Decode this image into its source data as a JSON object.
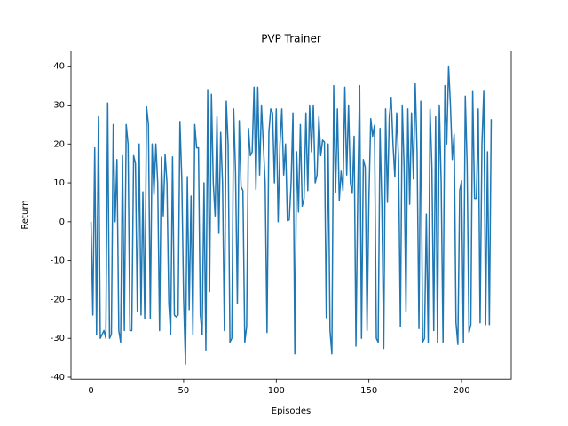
{
  "chart_data": {
    "type": "line",
    "title": "PVP Trainer",
    "xlabel": "Episodes",
    "ylabel": "Return",
    "x": [
      0,
      1,
      2,
      3,
      4,
      5,
      6,
      7,
      8,
      9,
      10,
      11,
      12,
      13,
      14,
      15,
      16,
      17,
      18,
      19,
      20,
      21,
      22,
      23,
      24,
      25,
      26,
      27,
      28,
      29,
      30,
      31,
      32,
      33,
      34,
      35,
      36,
      37,
      38,
      39,
      40,
      41,
      42,
      43,
      44,
      45,
      46,
      47,
      48,
      49,
      50,
      51,
      52,
      53,
      54,
      55,
      56,
      57,
      58,
      59,
      60,
      61,
      62,
      63,
      64,
      65,
      66,
      67,
      68,
      69,
      70,
      71,
      72,
      73,
      74,
      75,
      76,
      77,
      78,
      79,
      80,
      81,
      82,
      83,
      84,
      85,
      86,
      87,
      88,
      89,
      90,
      91,
      92,
      93,
      94,
      95,
      96,
      97,
      98,
      99,
      100,
      101,
      102,
      103,
      104,
      105,
      106,
      107,
      108,
      109,
      110,
      111,
      112,
      113,
      114,
      115,
      116,
      117,
      118,
      119,
      120,
      121,
      122,
      123,
      124,
      125,
      126,
      127,
      128,
      129,
      130,
      131,
      132,
      133,
      134,
      135,
      136,
      137,
      138,
      139,
      140,
      141,
      142,
      143,
      144,
      145,
      146,
      147,
      148,
      149,
      150,
      151,
      152,
      153,
      154,
      155,
      156,
      157,
      158,
      159,
      160,
      161,
      162,
      163,
      164,
      165,
      166,
      167,
      168,
      169,
      170,
      171,
      172,
      173,
      174,
      175,
      176,
      177,
      178,
      179,
      180,
      181,
      182,
      183,
      184,
      185,
      186,
      187,
      188,
      189,
      190,
      191,
      192,
      193,
      194,
      195,
      196,
      197,
      198,
      199,
      200,
      201,
      202,
      203,
      204,
      205,
      206,
      207,
      208,
      209,
      210,
      211,
      212,
      213,
      214,
      215,
      216
    ],
    "values": [
      0,
      -24,
      19,
      -29,
      27,
      -30,
      -29,
      -28,
      -30,
      30.5,
      -30,
      -29,
      25,
      0,
      16,
      -28,
      -31,
      17,
      -28,
      25,
      20,
      -28,
      -28,
      17,
      15,
      -23,
      20,
      -24,
      7.7,
      -25,
      29.5,
      25,
      -25,
      20,
      7,
      20,
      10,
      -28,
      16.6,
      1.5,
      17.3,
      10,
      -21,
      -29,
      16.7,
      -24,
      -24.5,
      -24,
      25.8,
      11,
      -20,
      -36.6,
      11.6,
      -22.6,
      6.6,
      -29,
      25,
      19,
      19,
      -24,
      -29,
      10,
      -33,
      34,
      -18,
      32.8,
      10,
      1.5,
      27,
      -3,
      23,
      10,
      -28,
      31,
      20,
      -31,
      -30,
      29,
      13,
      -21,
      26,
      9,
      8,
      -31,
      -27,
      24,
      17,
      18,
      34.6,
      8.3,
      34.6,
      12,
      30,
      20,
      10,
      -28.5,
      23,
      29,
      28,
      10,
      29,
      0,
      20,
      29,
      12,
      20,
      0.3,
      0.5,
      10,
      28,
      -34,
      18,
      2.5,
      25,
      4,
      6,
      28,
      8,
      30,
      18,
      30,
      10,
      12,
      27,
      17,
      21,
      20.5,
      -24.7,
      20,
      -28,
      -34,
      35,
      7.5,
      29,
      5.5,
      13,
      8,
      34.6,
      12,
      30,
      10,
      7.3,
      22,
      -32,
      8,
      35,
      -30,
      16,
      14,
      -28,
      6,
      26.5,
      22,
      24.8,
      -30,
      -31,
      24,
      4,
      -32.6,
      29,
      5,
      27,
      32,
      20,
      11.5,
      28,
      16,
      -27,
      30,
      14,
      -23,
      29,
      4.5,
      28,
      11,
      35.5,
      18,
      -27.5,
      31,
      -31,
      -30,
      2,
      -31,
      29,
      14,
      -28,
      27,
      -31,
      30,
      10,
      -31,
      35,
      20,
      40,
      30,
      16,
      22.5,
      -26,
      -31.6,
      8,
      10.5,
      -31,
      32.3,
      15,
      -28.5,
      -26.5,
      33.7,
      6,
      6,
      29,
      -26,
      20,
      33.8,
      -26.5,
      18,
      -26.5,
      26.4
    ],
    "color": "#1f77b4",
    "xlim": [
      -10.8,
      226.8
    ],
    "ylim": [
      -40.5,
      43.9
    ],
    "xticks": [
      0,
      50,
      100,
      150,
      200
    ],
    "yticks": [
      -40,
      -30,
      -20,
      -10,
      0,
      10,
      20,
      30,
      40
    ]
  }
}
